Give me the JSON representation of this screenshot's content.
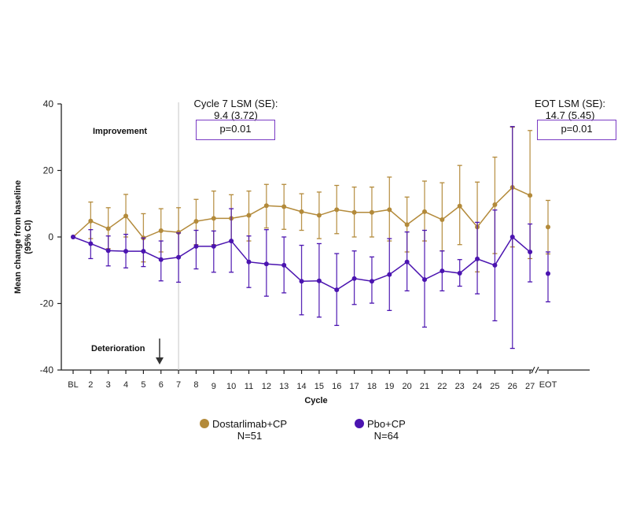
{
  "chart_data": {
    "type": "line",
    "title": "",
    "xlabel": "Cycle",
    "ylabel": "Mean change from baseline\n(95% CI)",
    "ylabel_lines": [
      "Mean change from baseline",
      "(95% CI)"
    ],
    "ylim": [
      -40,
      40
    ],
    "yticks": [
      -40,
      -20,
      0,
      20,
      40
    ],
    "categories": [
      "BL",
      "2",
      "3",
      "4",
      "5",
      "6",
      "7",
      "8",
      "9",
      "10",
      "11",
      "12",
      "13",
      "14",
      "15",
      "16",
      "17",
      "18",
      "19",
      "20",
      "21",
      "22",
      "23",
      "24",
      "25",
      "26",
      "27",
      "EOT"
    ],
    "axis_break_after": "27",
    "grid": false,
    "reference_line_at": "7",
    "series": [
      {
        "name": "Dostarlimab+CP",
        "n_label": "N=51",
        "color": "#b38a3a",
        "values": [
          0,
          4.8,
          2.5,
          6.3,
          -0.3,
          1.9,
          1.4,
          4.7,
          5.6,
          5.6,
          6.5,
          9.4,
          9.1,
          7.6,
          6.5,
          8.2,
          7.4,
          7.4,
          8.2,
          3.7,
          7.6,
          5.2,
          9.3,
          3.0,
          9.7,
          14.9,
          12.5,
          3.0
        ],
        "ci_low": [
          0,
          -0.5,
          -3.5,
          0,
          -7.5,
          -4.5,
          -6,
          -2.3,
          -2.3,
          -1.2,
          -1.2,
          2.7,
          2.3,
          2,
          -0.5,
          1,
          0,
          0,
          -1.2,
          -4.5,
          -1.2,
          -4.2,
          -2.3,
          -10.5,
          -5,
          -3,
          -6.5,
          -5.1
        ],
        "ci_high": [
          0,
          10.5,
          8.8,
          12.8,
          7,
          8.5,
          8.8,
          11.3,
          13.8,
          12.7,
          13.8,
          15.8,
          15.8,
          13,
          13.5,
          15.5,
          15,
          15,
          18,
          12,
          16.8,
          16.3,
          21.5,
          16.5,
          24,
          33,
          32,
          11
        ]
      },
      {
        "name": "Pbo+CP",
        "n_label": "N=64",
        "color": "#4b14b0",
        "values": [
          0,
          -2.0,
          -4.1,
          -4.3,
          -4.3,
          -6.8,
          -6.1,
          -2.8,
          -2.8,
          -1.2,
          -7.5,
          -8.1,
          -8.5,
          -13.3,
          -13.2,
          -15.9,
          -12.5,
          -13.3,
          -11.3,
          -7.5,
          -12.8,
          -10.2,
          -10.9,
          -6.6,
          -8.5,
          0,
          -4.5,
          -11
        ],
        "ci_low": [
          0,
          -6.5,
          -8.7,
          -9.3,
          -8.9,
          -13.2,
          -13.6,
          -9.6,
          -10.6,
          -10.6,
          -15.2,
          -17.8,
          -16.8,
          -23.4,
          -24.1,
          -26.6,
          -20.3,
          -19.9,
          -22.1,
          -16.2,
          -27.1,
          -16.2,
          -14.8,
          -17.1,
          -25.2,
          -33.5,
          -13.5,
          -19.5
        ],
        "ci_high": [
          0,
          2.2,
          0.3,
          0.8,
          -0.3,
          -1.2,
          1.2,
          2.0,
          1.8,
          8.5,
          0.3,
          2.2,
          0,
          -2.5,
          -2,
          -5,
          -4.2,
          -6,
          -0.5,
          1.5,
          2.0,
          -4.2,
          -6.8,
          4.4,
          8.1,
          33.2,
          3.9,
          -4.5
        ]
      }
    ],
    "annotations": {
      "improvement": "Improvement",
      "deterioration": "Deterioration",
      "cycle7": {
        "line1": "Cycle 7 LSM (SE):",
        "line2": "9.4 (3.72)",
        "p": "p=0.01"
      },
      "eot": {
        "line1": "EOT LSM (SE):",
        "line2": "14.7 (5.45)",
        "p": "p=0.01"
      }
    },
    "legend_position": "bottom-center"
  }
}
